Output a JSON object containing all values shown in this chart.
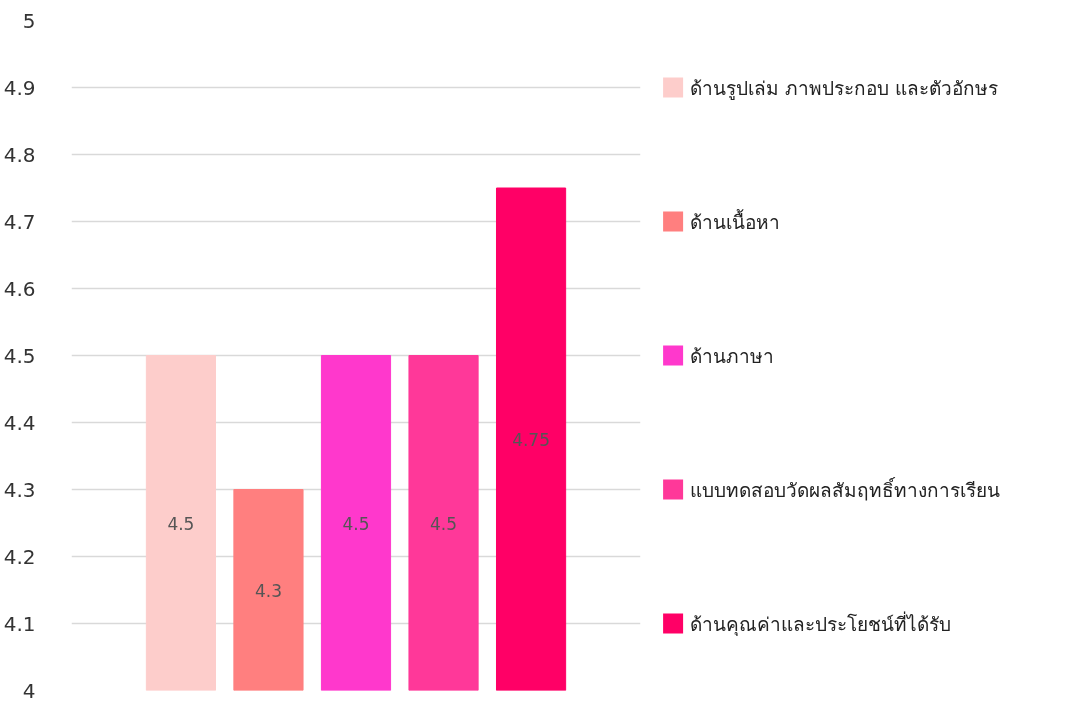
{
  "chart_data": {
    "type": "bar",
    "categories": [
      null
    ],
    "series": [
      {
        "name": "ด้านรูปเล่ม ภาพประกอบ และตัวอักษร",
        "color": "#fdcdcb",
        "values": [
          4.5
        ]
      },
      {
        "name": "ด้านเนื้อหา",
        "color": "#ff7f7f",
        "values": [
          4.3
        ]
      },
      {
        "name": "ด้านภาษา",
        "color": "#ff38cc",
        "values": [
          4.5
        ]
      },
      {
        "name": "แบบทดสอบวัดผลสัมฤทธิ์ทางการเรียน",
        "color": "#ff3899",
        "values": [
          4.5
        ]
      },
      {
        "name": "ด้านคุณค่าและประโยชน์ที่ได้รับ",
        "color": "#ff0066",
        "values": [
          4.75
        ]
      }
    ],
    "ylim": [
      4,
      5
    ],
    "yticks": [
      4,
      4.1,
      4.2,
      4.3,
      4.4,
      4.5,
      4.6,
      4.7,
      4.8,
      4.9,
      5
    ],
    "grid": "y",
    "legend": "right",
    "data_labels": true,
    "tick_labels": "y"
  }
}
